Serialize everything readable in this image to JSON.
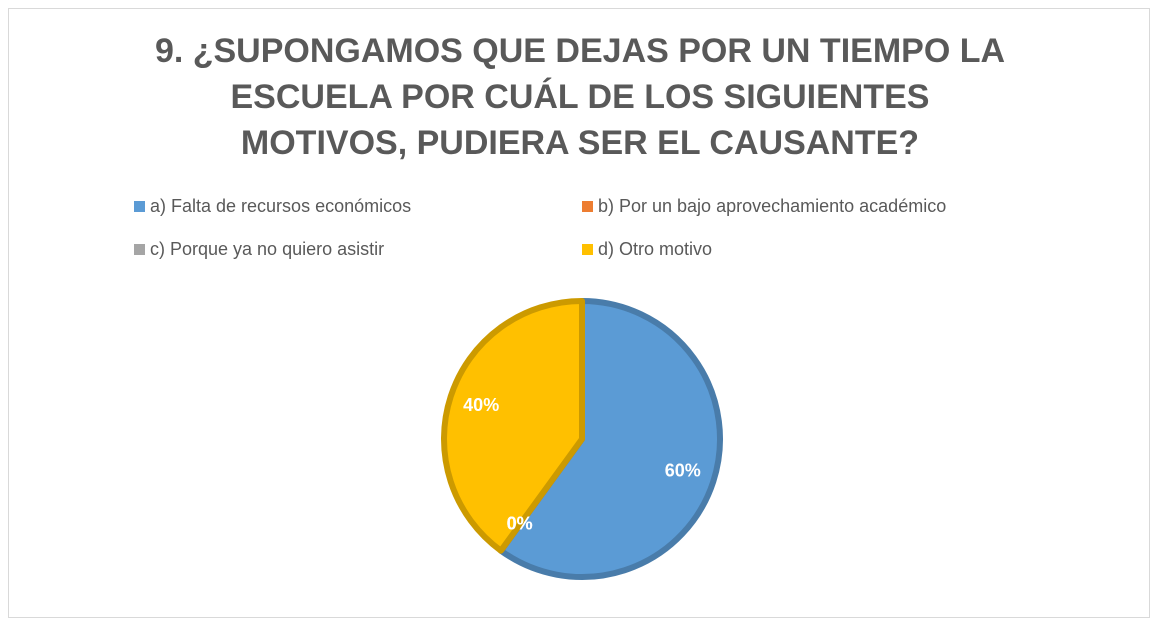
{
  "chart_data": {
    "type": "pie",
    "title": "9. ¿SUPONGAMOS QUE DEJAS POR UN TIEMPO LA ESCUELA POR CUÁL DE LOS SIGUIENTES MOTIVOS, PUDIERA SER EL CAUSANTE?",
    "categories": [
      "a) Falta de recursos económicos",
      "b) Por un bajo aprovechamiento académico",
      "c) Porque ya no quiero asistir",
      "d) Otro motivo"
    ],
    "values": [
      60,
      0,
      0,
      40
    ],
    "value_labels": [
      "60%",
      "0%",
      "0%",
      "40%"
    ],
    "colors": [
      "#5b9bd5",
      "#ed7d31",
      "#a5a5a5",
      "#ffc000"
    ],
    "legend": "top"
  }
}
